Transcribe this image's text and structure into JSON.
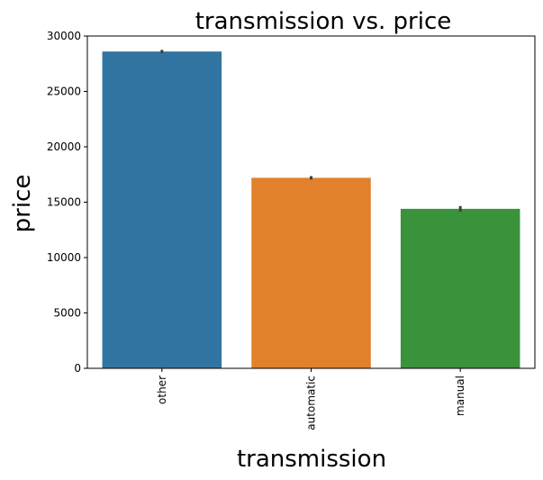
{
  "chart_data": {
    "type": "bar",
    "title": "transmission vs. price",
    "xlabel": "transmission",
    "ylabel": "price",
    "categories": [
      "other",
      "automatic",
      "manual"
    ],
    "values": [
      28600,
      17200,
      14400
    ],
    "error_low": [
      28450,
      17050,
      14150
    ],
    "error_high": [
      28750,
      17350,
      14650
    ],
    "colors": [
      "#3274a1",
      "#e1812c",
      "#3a923a"
    ],
    "error_color": "#3f3f3f",
    "ylim": [
      0,
      30000
    ],
    "yticks": [
      0,
      5000,
      10000,
      15000,
      20000,
      25000,
      30000
    ],
    "ytick_labels": [
      "0",
      "5000",
      "10000",
      "15000",
      "20000",
      "25000",
      "30000"
    ],
    "grid": false,
    "legend": "none"
  }
}
